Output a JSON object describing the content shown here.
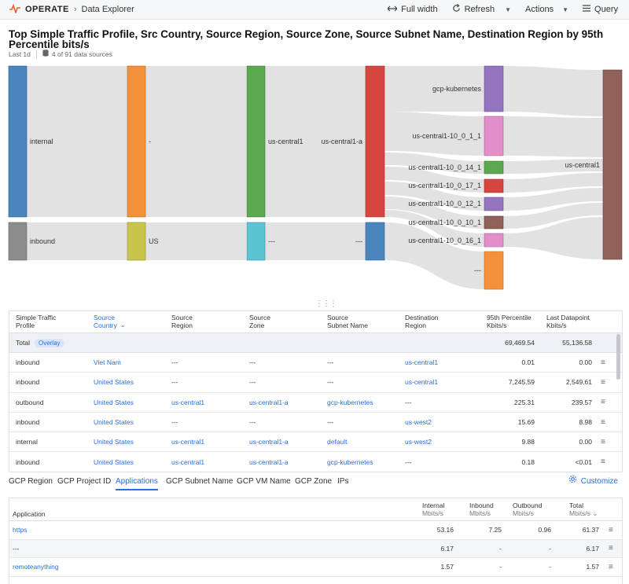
{
  "header": {
    "brand": "OPERATE",
    "breadcrumb": "Data Explorer",
    "full_width": "Full width",
    "refresh": "Refresh",
    "actions": "Actions",
    "query": "Query"
  },
  "report": {
    "title": "Top Simple Traffic Profile, Src Country, Source Region, Source Zone, Source Subnet Name, Destination Region by 95th Percentile bits/s",
    "time_range": "Last 1d",
    "data_sources": "4 of 91 data sources"
  },
  "sankey": {
    "labels": {
      "internal": "internal",
      "inbound": "inbound",
      "dash": "-",
      "us": "US",
      "zone_central": "us-central1",
      "zone_none": "---",
      "sub_central": "us-central1-a",
      "sub_none": "---",
      "gcp_k8s": "gcp-kubernetes",
      "sn_1": "us-central1-10_0_1_1",
      "sn_14": "us-central1-10_0_14_1",
      "sn_17": "us-central1-10_0_17_1",
      "sn_12": "us-central1-10_0_12_1",
      "sn_10": "us-central1-10_0_10_1",
      "sn_16": "us-central1-10_0_16_1",
      "sn_none": "---",
      "dest": "us-central1"
    },
    "colors": {
      "blue": "#4a85be",
      "grey": "#8c8c8c",
      "orange": "#f4923b",
      "olive": "#c7c64a",
      "green": "#5aa84f",
      "cyan": "#5bc4d2",
      "red": "#d5463f",
      "purple": "#9574bf",
      "pink": "#e28ec8",
      "brown": "#8f6159",
      "flow": "#e2e2e2"
    }
  },
  "table1": {
    "headers": [
      "Simple Traffic\nProfile",
      "Source\nCountry",
      "Source\nRegion",
      "Source\nZone",
      "Source\nSubnet Name",
      "Destination\nRegion",
      "95th Percentile\nKbits/s",
      "Last Datapoint\nKbits/s"
    ],
    "total_label": "Total",
    "overlay_label": "Overlay",
    "total_p95": "69,469.54",
    "total_last": "55,136.58",
    "rows": [
      {
        "profile": "inbound",
        "country": "Viet Nam",
        "region": "---",
        "zone": "---",
        "subnet": "---",
        "dest": "us-central1",
        "p95": "0.01",
        "last": "0.00"
      },
      {
        "profile": "inbound",
        "country": "United States",
        "region": "---",
        "zone": "---",
        "subnet": "---",
        "dest": "us-central1",
        "p95": "7,245.59",
        "last": "2,549.61"
      },
      {
        "profile": "outbound",
        "country": "United States",
        "region": "us-central1",
        "zone": "us-central1-a",
        "subnet": "gcp-kubernetes",
        "dest": "---",
        "p95": "225.31",
        "last": "239.57"
      },
      {
        "profile": "inbound",
        "country": "United States",
        "region": "---",
        "zone": "---",
        "subnet": "---",
        "dest": "us-west2",
        "p95": "15.69",
        "last": "8.98"
      },
      {
        "profile": "internal",
        "country": "United States",
        "region": "us-central1",
        "zone": "us-central1-a",
        "subnet": "default",
        "dest": "us-west2",
        "p95": "9.88",
        "last": "0.00"
      },
      {
        "profile": "inbound",
        "country": "United States",
        "region": "us-central1",
        "zone": "us-central1-a",
        "subnet": "gcp-kubernetes",
        "dest": "---",
        "p95": "0.18",
        "last": "<0.01"
      }
    ]
  },
  "tabs": {
    "items": [
      "GCP Region",
      "GCP Project ID",
      "Applications",
      "GCP Subnet Name",
      "GCP VM Name",
      "GCP Zone",
      "IPs"
    ],
    "customize": "Customize"
  },
  "table2": {
    "headers": {
      "application": "Application",
      "internal": "Internal",
      "inbound": "Inbound",
      "outbound": "Outbound",
      "total": "Total",
      "unit": "Mbits/s"
    },
    "rows": [
      {
        "app": "https",
        "internal": "53.16",
        "inbound": "7.25",
        "outbound": "0.96",
        "total": "61.37"
      },
      {
        "app": "---",
        "internal": "6.17",
        "inbound": "-",
        "outbound": "-",
        "total": "6.17"
      },
      {
        "app": "remoteanything",
        "internal": "1.57",
        "inbound": "-",
        "outbound": "-",
        "total": "1.57"
      }
    ]
  }
}
